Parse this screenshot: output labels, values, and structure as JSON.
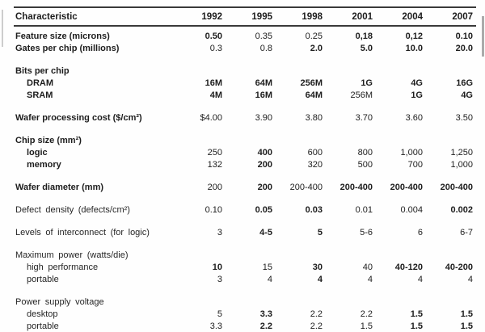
{
  "table": {
    "header": {
      "label": "Characteristic",
      "years": [
        "1992",
        "1995",
        "1998",
        "2001",
        "2004",
        "2007"
      ]
    },
    "groups": [
      {
        "name": "feature-and-gates",
        "rows": [
          {
            "label": "Feature size (microns)",
            "bold": true,
            "indent": false,
            "cells": [
              {
                "v": "0.50",
                "b": true
              },
              {
                "v": "0.35"
              },
              {
                "v": "0.25"
              },
              {
                "v": "0,18",
                "b": true
              },
              {
                "v": "0,12",
                "b": true
              },
              {
                "v": "0.10",
                "b": true
              }
            ]
          },
          {
            "label": "Gates per chip (millions)",
            "bold": true,
            "indent": false,
            "cells": [
              {
                "v": "0.3"
              },
              {
                "v": "0.8"
              },
              {
                "v": "2.0",
                "b": true
              },
              {
                "v": "5.0",
                "b": true
              },
              {
                "v": "10.0",
                "b": true
              },
              {
                "v": "20.0",
                "b": true
              }
            ]
          }
        ]
      },
      {
        "name": "bits-per-chip",
        "rows": [
          {
            "label": "Bits per chip",
            "bold": true,
            "indent": false,
            "cells": []
          },
          {
            "label": "DRAM",
            "bold": true,
            "indent": true,
            "cells": [
              {
                "v": "16M",
                "b": true
              },
              {
                "v": "64M",
                "b": true
              },
              {
                "v": "256M",
                "b": true
              },
              {
                "v": "1G",
                "b": true
              },
              {
                "v": "4G",
                "b": true
              },
              {
                "v": "16G",
                "b": true
              }
            ]
          },
          {
            "label": "SRAM",
            "bold": true,
            "indent": true,
            "cells": [
              {
                "v": "4M",
                "b": true
              },
              {
                "v": "16M",
                "b": true
              },
              {
                "v": "64M",
                "b": true
              },
              {
                "v": "256M"
              },
              {
                "v": "1G",
                "b": true
              },
              {
                "v": "4G",
                "b": true
              }
            ]
          }
        ]
      },
      {
        "name": "wafer-processing-cost",
        "rows": [
          {
            "label": "Wafer processing cost ($/cm²)",
            "bold": true,
            "indent": false,
            "cells": [
              {
                "v": "$4.00"
              },
              {
                "v": "3.90"
              },
              {
                "v": "3.80"
              },
              {
                "v": "3.70"
              },
              {
                "v": "3.60"
              },
              {
                "v": "3.50"
              }
            ]
          }
        ]
      },
      {
        "name": "chip-size",
        "rows": [
          {
            "label": "Chip size (mm²)",
            "bold": true,
            "indent": false,
            "cells": []
          },
          {
            "label": "logic",
            "bold": true,
            "indent": true,
            "cells": [
              {
                "v": "250"
              },
              {
                "v": "400",
                "b": true
              },
              {
                "v": "600"
              },
              {
                "v": "800"
              },
              {
                "v": "1,000"
              },
              {
                "v": "1,250"
              }
            ]
          },
          {
            "label": "memory",
            "bold": true,
            "indent": true,
            "cells": [
              {
                "v": "132"
              },
              {
                "v": "200",
                "b": true
              },
              {
                "v": "320"
              },
              {
                "v": "500"
              },
              {
                "v": "700"
              },
              {
                "v": "1,000"
              }
            ]
          }
        ]
      },
      {
        "name": "wafer-diameter",
        "rows": [
          {
            "label": "Wafer diameter (mm)",
            "bold": true,
            "indent": false,
            "cells": [
              {
                "v": "200"
              },
              {
                "v": "200",
                "b": true
              },
              {
                "v": "200-400"
              },
              {
                "v": "200-400",
                "b": true
              },
              {
                "v": "200-400",
                "b": true
              },
              {
                "v": "200-400",
                "b": true
              }
            ]
          }
        ]
      },
      {
        "name": "defect-density",
        "rows": [
          {
            "label": "Defect density (defects/cm²)",
            "bold": false,
            "indent": false,
            "cells": [
              {
                "v": "0.10"
              },
              {
                "v": "0.05",
                "b": true
              },
              {
                "v": "0.03",
                "b": true
              },
              {
                "v": "0.01"
              },
              {
                "v": "0.004"
              },
              {
                "v": "0.002",
                "b": true
              }
            ]
          }
        ]
      },
      {
        "name": "levels-of-interconnect",
        "rows": [
          {
            "label": "Levels of interconnect (for logic)",
            "bold": false,
            "indent": false,
            "cells": [
              {
                "v": "3"
              },
              {
                "v": "4-5",
                "b": true
              },
              {
                "v": "5",
                "b": true
              },
              {
                "v": "5-6"
              },
              {
                "v": "6"
              },
              {
                "v": "6-7"
              }
            ]
          }
        ]
      },
      {
        "name": "maximum-power",
        "rows": [
          {
            "label": "Maximum power (watts/die)",
            "bold": false,
            "indent": false,
            "cells": []
          },
          {
            "label": "high performance",
            "bold": false,
            "indent": true,
            "cells": [
              {
                "v": "10",
                "b": true
              },
              {
                "v": "15"
              },
              {
                "v": "30",
                "b": true
              },
              {
                "v": "40"
              },
              {
                "v": "40-120",
                "b": true
              },
              {
                "v": "40-200",
                "b": true
              }
            ]
          },
          {
            "label": "portable",
            "bold": false,
            "indent": true,
            "cells": [
              {
                "v": "3"
              },
              {
                "v": "4"
              },
              {
                "v": "4",
                "b": true
              },
              {
                "v": "4"
              },
              {
                "v": "4"
              },
              {
                "v": "4"
              }
            ]
          }
        ]
      },
      {
        "name": "power-supply-voltage",
        "rows": [
          {
            "label": "Power supply voltage",
            "bold": false,
            "indent": false,
            "cells": []
          },
          {
            "label": "desktop",
            "bold": false,
            "indent": true,
            "cells": [
              {
                "v": "5"
              },
              {
                "v": "3.3",
                "b": true
              },
              {
                "v": "2.2"
              },
              {
                "v": "2.2"
              },
              {
                "v": "1.5",
                "b": true
              },
              {
                "v": "1.5",
                "b": true
              }
            ]
          },
          {
            "label": "portable",
            "bold": false,
            "indent": true,
            "cells": [
              {
                "v": "3.3"
              },
              {
                "v": "2.2",
                "b": true
              },
              {
                "v": "2.2"
              },
              {
                "v": "1.5"
              },
              {
                "v": "1.5",
                "b": true
              },
              {
                "v": "1.5",
                "b": true
              }
            ]
          }
        ]
      }
    ]
  }
}
